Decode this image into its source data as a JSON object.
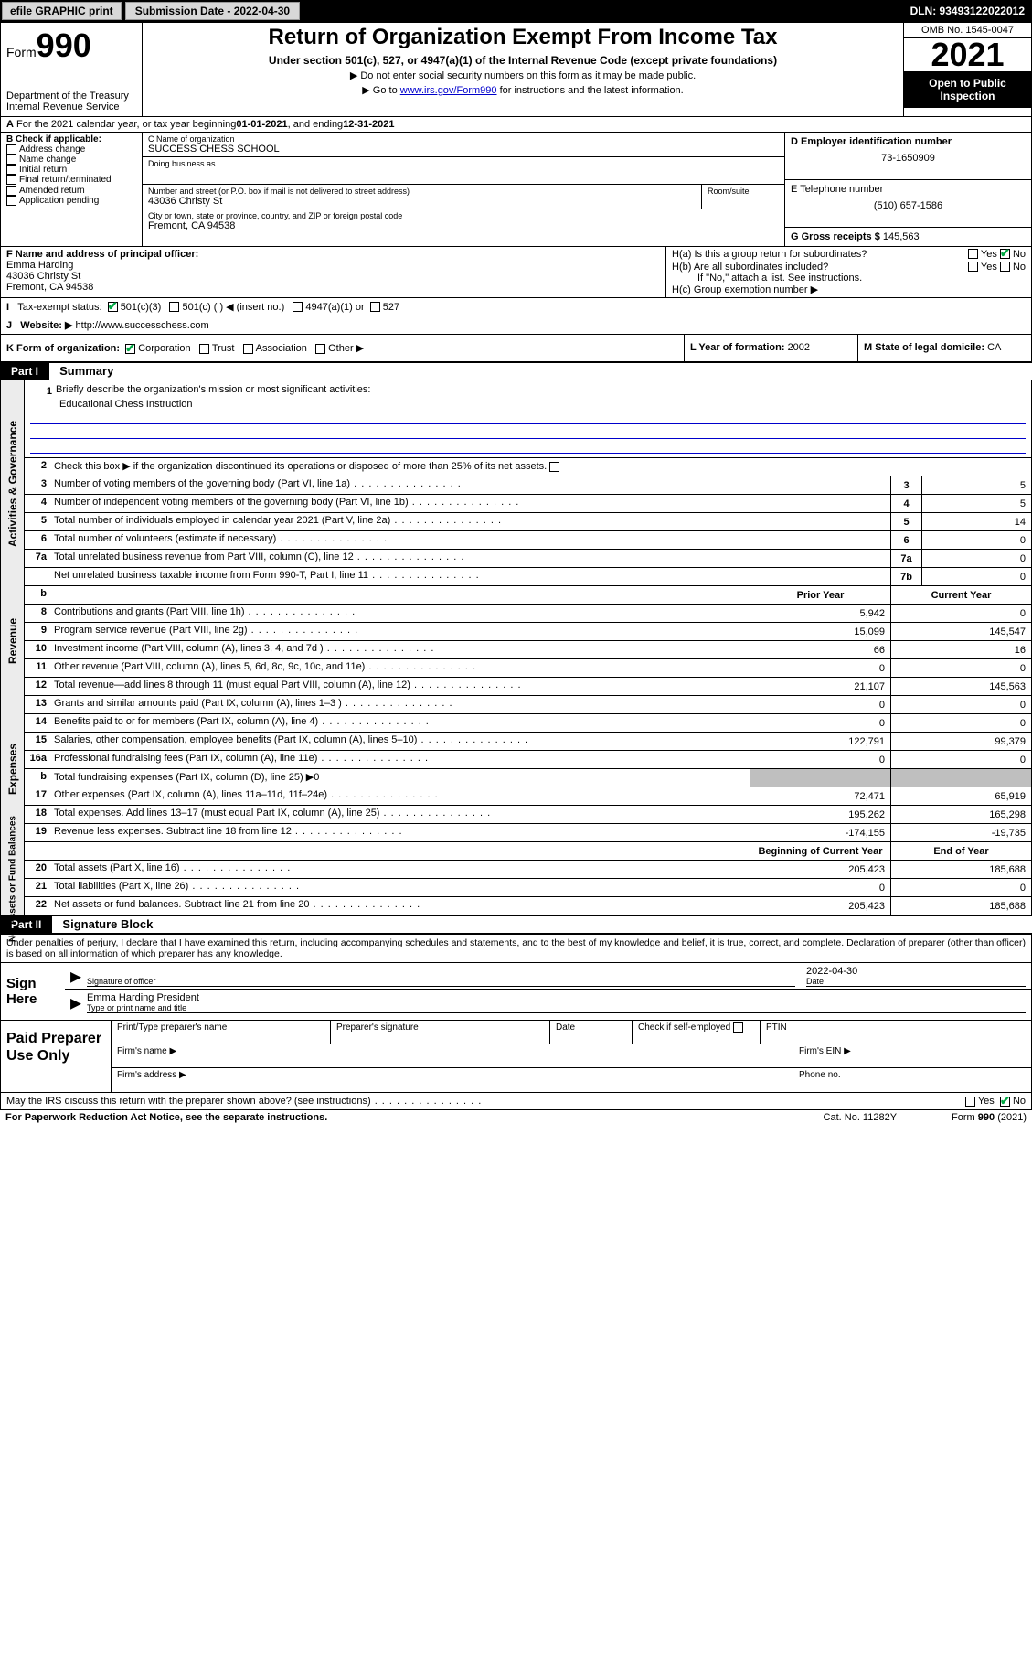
{
  "topbar": {
    "efile": "efile GRAPHIC print",
    "submission": "Submission Date - 2022-04-30",
    "dln": "DLN: 93493122022012"
  },
  "header": {
    "form_label": "Form",
    "form_num": "990",
    "dept": "Department of the Treasury",
    "irs": "Internal Revenue Service",
    "title": "Return of Organization Exempt From Income Tax",
    "sub1": "Under section 501(c), 527, or 4947(a)(1) of the Internal Revenue Code (except private foundations)",
    "sub2": "▶ Do not enter social security numbers on this form as it may be made public.",
    "sub3_pre": "▶ Go to ",
    "sub3_link": "www.irs.gov/Form990",
    "sub3_post": " for instructions and the latest information.",
    "omb": "OMB No. 1545-0047",
    "year": "2021",
    "open": "Open to Public Inspection"
  },
  "rowA": {
    "text1": "For the 2021 calendar year, or tax year beginning ",
    "begin": "01-01-2021",
    "text2": "  , and ending ",
    "end": "12-31-2021"
  },
  "colB": {
    "title": "B Check if applicable:",
    "opts": [
      "Address change",
      "Name change",
      "Initial return",
      "Final return/terminated",
      "Amended return",
      "Application pending"
    ]
  },
  "colC": {
    "name_label": "C Name of organization",
    "name": "SUCCESS CHESS SCHOOL",
    "dba_label": "Doing business as",
    "street_label": "Number and street (or P.O. box if mail is not delivered to street address)",
    "street": "43036 Christy St",
    "room_label": "Room/suite",
    "city_label": "City or town, state or province, country, and ZIP or foreign postal code",
    "city": "Fremont, CA  94538"
  },
  "colD": {
    "label": "D Employer identification number",
    "ein": "73-1650909"
  },
  "colE": {
    "label": "E Telephone number",
    "phone": "(510) 657-1586"
  },
  "colG": {
    "label": "G Gross receipts $",
    "val": "145,563"
  },
  "rowF": {
    "label": "F Name and address of principal officer:",
    "name": "Emma Harding",
    "addr1": "43036 Christy St",
    "addr2": "Fremont, CA  94538"
  },
  "rowH": {
    "ha": "H(a)  Is this a group return for subordinates?",
    "hb": "H(b)  Are all subordinates included?",
    "hb_note": "If \"No,\" attach a list. See instructions.",
    "hc": "H(c)  Group exemption number ▶",
    "yes": "Yes",
    "no": "No"
  },
  "rowI": {
    "label": "Tax-exempt status:",
    "opt1": "501(c)(3)",
    "opt2": "501(c) (  ) ◀ (insert no.)",
    "opt3": "4947(a)(1) or",
    "opt4": "527"
  },
  "rowJ": {
    "label": "Website: ▶",
    "url": "http://www.successchess.com"
  },
  "rowK": {
    "label": "K Form of organization:",
    "opts": [
      "Corporation",
      "Trust",
      "Association",
      "Other ▶"
    ]
  },
  "rowL": {
    "label": "L Year of formation: ",
    "val": "2002"
  },
  "rowM": {
    "label": "M State of legal domicile: ",
    "val": "CA"
  },
  "part1": {
    "part": "Part I",
    "title": "Summary",
    "line1_label": "Briefly describe the organization's mission or most significant activities:",
    "mission": "Educational Chess Instruction",
    "line2": "Check this box ▶   if the organization discontinued its operations or disposed of more than 25% of its net assets.",
    "sections": [
      {
        "vtab": "Activities & Governance"
      },
      {
        "vtab": "Revenue"
      },
      {
        "vtab": "Expenses"
      },
      {
        "vtab": "Net Assets or Fund Balances"
      }
    ],
    "govlines": [
      {
        "n": "3",
        "d": "Number of voting members of the governing body (Part VI, line 1a)",
        "c": "3",
        "v": "5"
      },
      {
        "n": "4",
        "d": "Number of independent voting members of the governing body (Part VI, line 1b)",
        "c": "4",
        "v": "5"
      },
      {
        "n": "5",
        "d": "Total number of individuals employed in calendar year 2021 (Part V, line 2a)",
        "c": "5",
        "v": "14"
      },
      {
        "n": "6",
        "d": "Total number of volunteers (estimate if necessary)",
        "c": "6",
        "v": "0"
      },
      {
        "n": "7a",
        "d": "Total unrelated business revenue from Part VIII, column (C), line 12",
        "c": "7a",
        "v": "0"
      },
      {
        "n": "",
        "d": "Net unrelated business taxable income from Form 990-T, Part I, line 11",
        "c": "7b",
        "v": "0"
      }
    ],
    "twocol_head": {
      "b": "b",
      "prior": "Prior Year",
      "curr": "Current Year"
    },
    "revenue": [
      {
        "n": "8",
        "d": "Contributions and grants (Part VIII, line 1h)",
        "p": "5,942",
        "c": "0"
      },
      {
        "n": "9",
        "d": "Program service revenue (Part VIII, line 2g)",
        "p": "15,099",
        "c": "145,547"
      },
      {
        "n": "10",
        "d": "Investment income (Part VIII, column (A), lines 3, 4, and 7d )",
        "p": "66",
        "c": "16"
      },
      {
        "n": "11",
        "d": "Other revenue (Part VIII, column (A), lines 5, 6d, 8c, 9c, 10c, and 11e)",
        "p": "0",
        "c": "0"
      },
      {
        "n": "12",
        "d": "Total revenue—add lines 8 through 11 (must equal Part VIII, column (A), line 12)",
        "p": "21,107",
        "c": "145,563"
      }
    ],
    "expenses": [
      {
        "n": "13",
        "d": "Grants and similar amounts paid (Part IX, column (A), lines 1–3 )",
        "p": "0",
        "c": "0"
      },
      {
        "n": "14",
        "d": "Benefits paid to or for members (Part IX, column (A), line 4)",
        "p": "0",
        "c": "0"
      },
      {
        "n": "15",
        "d": "Salaries, other compensation, employee benefits (Part IX, column (A), lines 5–10)",
        "p": "122,791",
        "c": "99,379"
      },
      {
        "n": "16a",
        "d": "Professional fundraising fees (Part IX, column (A), line 11e)",
        "p": "0",
        "c": "0"
      },
      {
        "n": "b",
        "d": "Total fundraising expenses (Part IX, column (D), line 25) ▶0",
        "grey": true
      },
      {
        "n": "17",
        "d": "Other expenses (Part IX, column (A), lines 11a–11d, 11f–24e)",
        "p": "72,471",
        "c": "65,919"
      },
      {
        "n": "18",
        "d": "Total expenses. Add lines 13–17 (must equal Part IX, column (A), line 25)",
        "p": "195,262",
        "c": "165,298"
      },
      {
        "n": "19",
        "d": "Revenue less expenses. Subtract line 18 from line 12",
        "p": "-174,155",
        "c": "-19,735"
      }
    ],
    "netassets_head": {
      "begin": "Beginning of Current Year",
      "end": "End of Year"
    },
    "netassets": [
      {
        "n": "20",
        "d": "Total assets (Part X, line 16)",
        "p": "205,423",
        "c": "185,688"
      },
      {
        "n": "21",
        "d": "Total liabilities (Part X, line 26)",
        "p": "0",
        "c": "0"
      },
      {
        "n": "22",
        "d": "Net assets or fund balances. Subtract line 21 from line 20",
        "p": "205,423",
        "c": "185,688"
      }
    ]
  },
  "part2": {
    "part": "Part II",
    "title": "Signature Block",
    "perjury": "Under penalties of perjury, I declare that I have examined this return, including accompanying schedules and statements, and to the best of my knowledge and belief, it is true, correct, and complete. Declaration of preparer (other than officer) is based on all information of which preparer has any knowledge.",
    "sign_here": "Sign Here",
    "sig_officer": "Signature of officer",
    "sig_date": "2022-04-30",
    "date_label": "Date",
    "officer_name": "Emma Harding President",
    "type_label": "Type or print name and title",
    "paid_label": "Paid Preparer Use Only",
    "paid_cols": [
      "Print/Type preparer's name",
      "Preparer's signature",
      "Date"
    ],
    "paid_check": "Check       if self-employed",
    "ptin": "PTIN",
    "firm_name": "Firm's name    ▶",
    "firm_ein": "Firm's EIN ▶",
    "firm_addr": "Firm's address ▶",
    "phone": "Phone no."
  },
  "footer": {
    "discuss": "May the IRS discuss this return with the preparer shown above? (see instructions)",
    "yes": "Yes",
    "no": "No",
    "paperwork": "For Paperwork Reduction Act Notice, see the separate instructions.",
    "cat": "Cat. No. 11282Y",
    "form": "Form 990 (2021)"
  }
}
